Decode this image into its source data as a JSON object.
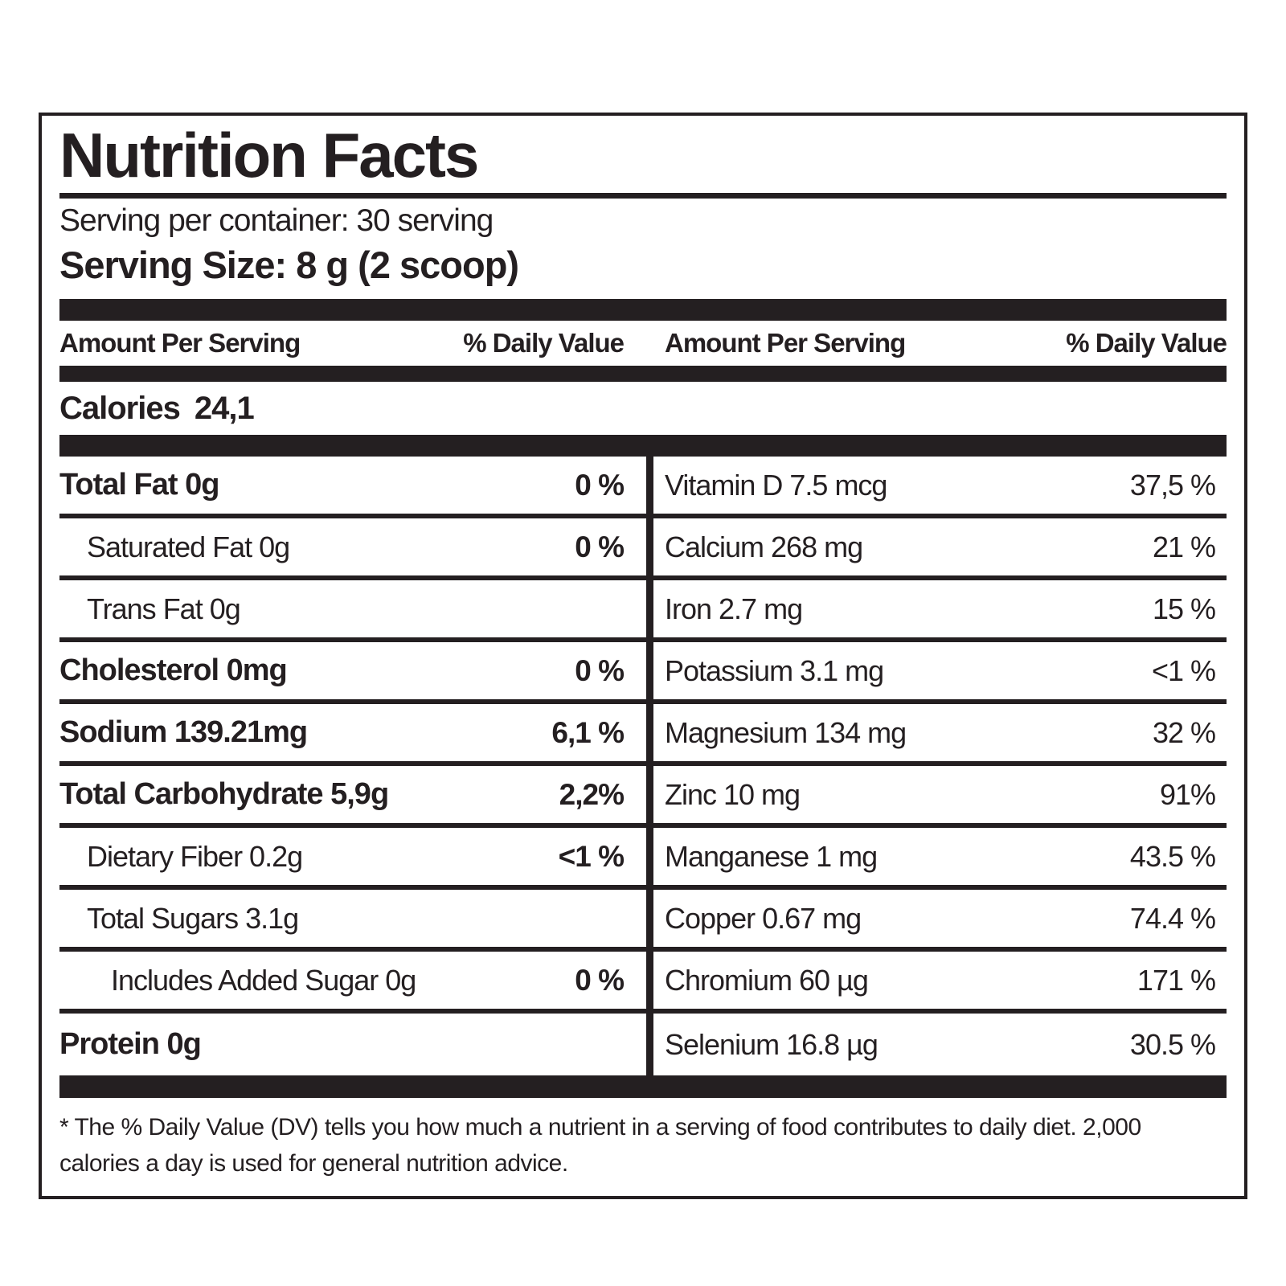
{
  "colors": {
    "ink": "#241f21",
    "paper": "#ffffff"
  },
  "label": {
    "title": "Nutrition Facts",
    "serving_per_container": "Serving per container: 30 serving",
    "serving_size": "Serving Size: 8 g (2 scoop)",
    "column_headers": {
      "amount": "Amount Per Serving",
      "daily_value": "% Daily Value"
    },
    "calories": {
      "label": "Calories",
      "value": "24,1"
    },
    "left_rows": [
      {
        "text": "Total Fat 0g",
        "dv": "0 %"
      },
      {
        "text": "Saturated Fat 0g",
        "dv": "0 %"
      },
      {
        "text": "Trans Fat 0g",
        "dv": ""
      },
      {
        "text": "Cholesterol 0mg",
        "dv": "0 %"
      },
      {
        "text": "Sodium 139.21mg",
        "dv": "6,1 %"
      },
      {
        "text": "Total Carbohydrate 5,9g",
        "dv": "2,2%"
      },
      {
        "text": "Dietary Fiber 0.2g",
        "dv": "<1 %"
      },
      {
        "text": "Total Sugars 3.1g",
        "dv": ""
      },
      {
        "text": "Includes Added Sugar 0g",
        "dv": "0 %"
      },
      {
        "text": "Protein 0g",
        "dv": ""
      }
    ],
    "right_rows": [
      {
        "text": "Vitamin D 7.5 mcg",
        "dv": "37,5 %"
      },
      {
        "text": "Calcium 268 mg",
        "dv": "21 %"
      },
      {
        "text": "Iron 2.7 mg",
        "dv": "15 %"
      },
      {
        "text": "Potassium 3.1 mg",
        "dv": "<1 %"
      },
      {
        "text": "Magnesium 134 mg",
        "dv": "32 %"
      },
      {
        "text": "Zinc 10 mg",
        "dv": "91%"
      },
      {
        "text": "Manganese 1 mg",
        "dv": "43.5 %"
      },
      {
        "text": "Copper 0.67 mg",
        "dv": "74.4 %"
      },
      {
        "text": "Chromium 60 µg",
        "dv": "171 %"
      },
      {
        "text": "Selenium 16.8 µg",
        "dv": "30.5 %"
      }
    ],
    "footnote": "* The % Daily Value (DV) tells you how much a nutrient in a serving of food contributes to daily diet. 2,000 calories a day is used for general nutrition advice."
  }
}
